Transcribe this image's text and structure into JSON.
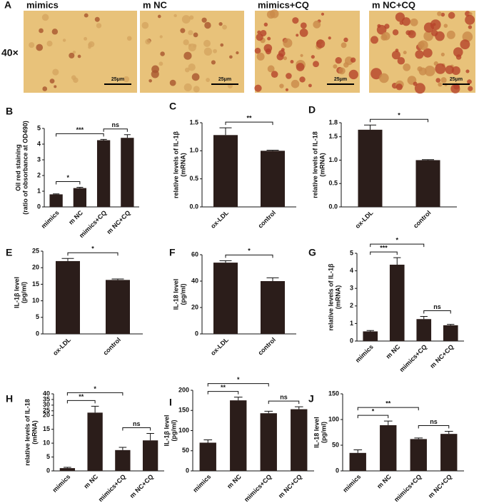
{
  "micrographs": {
    "panel": "A",
    "magnification": "40×",
    "images": [
      {
        "title": "mimics",
        "scale": "25μm"
      },
      {
        "title": "m NC",
        "scale": "25μm"
      },
      {
        "title": "mimics+CQ",
        "scale": "25μm"
      },
      {
        "title": "m NC+CQ",
        "scale": "25μm"
      }
    ]
  },
  "chart_data": [
    {
      "type": "bar",
      "panel": "B",
      "y_label": [
        "Oil red staining",
        "(ratio of obsorbance at OD490)"
      ],
      "color": "#2b1d1a",
      "categories": [
        "mimics",
        "m NC",
        "mimics+CQ",
        "m NC+CQ"
      ],
      "values": [
        0.8,
        1.2,
        4.25,
        4.4
      ],
      "errors": [
        0.03,
        0.05,
        0.05,
        0.2
      ],
      "ylim": [
        0,
        5
      ],
      "yticks": [
        0,
        1,
        2,
        3,
        4,
        5
      ],
      "annotations": [
        {
          "text": "*",
          "between": [
            "mimics",
            "m NC"
          ]
        },
        {
          "text": "***",
          "between": [
            "mimics",
            "mimics+CQ"
          ]
        },
        {
          "text": "ns",
          "between": [
            "mimics+CQ",
            "m NC+CQ"
          ]
        }
      ]
    },
    {
      "type": "bar",
      "panel": "C",
      "y_label": [
        "relative levels of IL-1β",
        "(mRNA)"
      ],
      "color": "#2b1d1a",
      "categories": [
        "ox-LDL",
        "control"
      ],
      "values": [
        1.28,
        1.0
      ],
      "errors": [
        0.13,
        0.01
      ],
      "ylim": [
        0,
        1.5
      ],
      "yticks": [
        {
          "value": 0,
          "label": "0.0"
        },
        0.5,
        {
          "value": 1,
          "label": "1.0"
        },
        1.5
      ],
      "annotations": [
        {
          "text": "**",
          "between": [
            "ox-LDL",
            "control"
          ]
        }
      ]
    },
    {
      "type": "bar",
      "panel": "D",
      "y_label": [
        "relative levels of IL-18",
        "(mRNA)"
      ],
      "color": "#2b1d1a",
      "categories": [
        "ox-LDL",
        "control"
      ],
      "values": [
        1.65,
        1.0
      ],
      "errors": [
        0.1,
        0.01
      ],
      "ylim": [
        0,
        1.8
      ],
      "yticks": [
        {
          "value": 0,
          "label": "0.0"
        },
        0.5,
        {
          "value": 1,
          "label": "1.0"
        },
        1.5,
        1.8
      ],
      "annotations": [
        {
          "text": "*",
          "between": [
            "ox-LDL",
            "control"
          ]
        }
      ]
    },
    {
      "type": "bar",
      "panel": "E",
      "y_label": [
        "IL-1β level",
        "(pg/ml)"
      ],
      "color": "#2b1d1a",
      "categories": [
        "ox-LDL",
        "control"
      ],
      "values": [
        22,
        16.3
      ],
      "errors": [
        0.8,
        0.3
      ],
      "ylim": [
        0,
        25
      ],
      "yticks": [
        0,
        5,
        10,
        15,
        20,
        25
      ],
      "annotations": [
        {
          "text": "*",
          "between": [
            "ox-LDL",
            "control"
          ]
        }
      ]
    },
    {
      "type": "bar",
      "panel": "F",
      "y_label": [
        "IL-18 level",
        "(pg/ml)"
      ],
      "color": "#2b1d1a",
      "categories": [
        "ox-LDL",
        "control"
      ],
      "values": [
        54,
        40
      ],
      "errors": [
        1.5,
        2.5
      ],
      "ylim": [
        0,
        60
      ],
      "yticks": [
        0,
        20,
        40,
        60
      ],
      "annotations": [
        {
          "text": "*",
          "between": [
            "ox-LDL",
            "control"
          ]
        }
      ]
    },
    {
      "type": "bar",
      "panel": "G",
      "y_label": [
        "relative levels of IL-1β",
        "(mRNA)"
      ],
      "color": "#2b1d1a",
      "categories": [
        "mimics",
        "m NC",
        "mimics+CQ",
        "m NC+CQ"
      ],
      "values": [
        0.55,
        4.35,
        1.25,
        0.9
      ],
      "errors": [
        0.05,
        0.4,
        0.15,
        0.05
      ],
      "ylim": [
        0,
        5
      ],
      "yticks": [
        0,
        1,
        2,
        3,
        4,
        5
      ],
      "annotations": [
        {
          "text": "***",
          "between": [
            "mimics",
            "m NC"
          ]
        },
        {
          "text": "*",
          "between": [
            "mimics",
            "mimics+CQ"
          ]
        },
        {
          "text": "ns",
          "between": [
            "mimics+CQ",
            "m NC+CQ"
          ]
        }
      ]
    },
    {
      "type": "bar",
      "panel": "H",
      "y_label": [
        "relative levels of IL-18",
        "(mRNA)"
      ],
      "color": "#2b1d1a",
      "categories": [
        "mimics",
        "m NC",
        "mimics+CQ",
        "m NC+CQ"
      ],
      "values": [
        1,
        23,
        7.5,
        11
      ],
      "errors": [
        0.3,
        6,
        1,
        2.5
      ],
      "ylim": [
        0,
        40
      ],
      "ybreak": [
        20,
        25
      ],
      "yticks": [
        0,
        5,
        10,
        15,
        20,
        25,
        30,
        35,
        40
      ],
      "annotations": [
        {
          "text": "**",
          "between": [
            "mimics",
            "m NC"
          ]
        },
        {
          "text": "*",
          "between": [
            "mimics",
            "mimics+CQ"
          ]
        },
        {
          "text": "ns",
          "between": [
            "mimics+CQ",
            "m NC+CQ"
          ]
        }
      ]
    },
    {
      "type": "bar",
      "panel": "I",
      "y_label": [
        "IL-1β level",
        "(pg/ml)"
      ],
      "color": "#2b1d1a",
      "categories": [
        "mimics",
        "m NC",
        "mimics+CQ",
        "m NC+CQ"
      ],
      "values": [
        70,
        175,
        143,
        153
      ],
      "errors": [
        7,
        8,
        5,
        6
      ],
      "ylim": [
        0,
        200
      ],
      "yticks": [
        0,
        50,
        100,
        150,
        200
      ],
      "annotations": [
        {
          "text": "**",
          "between": [
            "mimics",
            "m NC"
          ]
        },
        {
          "text": "*",
          "between": [
            "mimics",
            "mimics+CQ"
          ]
        },
        {
          "text": "ns",
          "between": [
            "mimics+CQ",
            "m NC+CQ"
          ]
        }
      ]
    },
    {
      "type": "bar",
      "panel": "J",
      "y_label": [
        "IL-18 level",
        "(pg/ml)"
      ],
      "color": "#2b1d1a",
      "categories": [
        "mimics",
        "m NC",
        "mimics+CQ",
        "m NC+CQ"
      ],
      "values": [
        35,
        89,
        62,
        72
      ],
      "errors": [
        6,
        8,
        2,
        5
      ],
      "ylim": [
        0,
        150
      ],
      "yticks": [
        0,
        50,
        100,
        150
      ],
      "annotations": [
        {
          "text": "*",
          "between": [
            "mimics",
            "m NC"
          ]
        },
        {
          "text": "**",
          "between": [
            "mimics",
            "mimics+CQ"
          ]
        },
        {
          "text": "ns",
          "between": [
            "mimics+CQ",
            "m NC+CQ"
          ]
        }
      ]
    }
  ]
}
